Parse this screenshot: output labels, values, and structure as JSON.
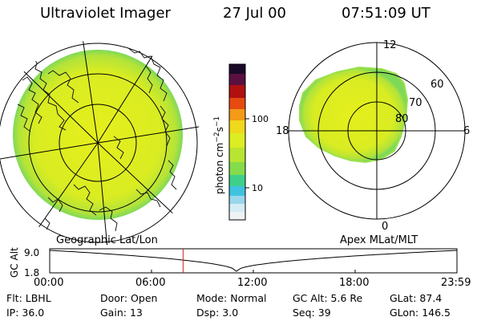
{
  "header": {
    "instrument": "Ultraviolet Imager",
    "date": "27 Jul 00",
    "time": "07:51:09 UT"
  },
  "colorbar": {
    "unit_label": "photon cm",
    "unit_exp1": "−2",
    "unit_s": "s",
    "unit_exp2": "−1",
    "ticks": [
      {
        "label": "100",
        "value": 100
      },
      {
        "label": "10",
        "value": 10
      }
    ]
  },
  "polar_plot": {
    "mlt_labels": {
      "top": "12",
      "bottom": "0",
      "left": "18",
      "right": "6"
    },
    "lat_labels": [
      "80",
      "70",
      "60"
    ]
  },
  "map_labels": {
    "geographic": "Geographic Lat/Lon",
    "apex": "Apex MLat/MLT"
  },
  "altitude_strip": {
    "ylabel": "GC Alt",
    "ymax_label": "9.0",
    "ymin_label": "1.8",
    "x_ticks": [
      "00:00",
      "06:00",
      "12:00",
      "18:00",
      "23:59"
    ],
    "current_time_hours": 7.86,
    "perigee_time_hours": 11.0
  },
  "info": {
    "row1": [
      {
        "key": "Flt:",
        "value": "LBHL"
      },
      {
        "key": "Door:",
        "value": "Open"
      },
      {
        "key": "Mode:",
        "value": "Normal"
      },
      {
        "key": "GC Alt:",
        "value": "5.6 Re"
      },
      {
        "key": "GLat:",
        "value": "87.4"
      }
    ],
    "row2": [
      {
        "key": "IP:",
        "value": "36.0"
      },
      {
        "key": "Gain:",
        "value": "13"
      },
      {
        "key": "Dsp:",
        "value": "3.0"
      },
      {
        "key": "Seq:",
        "value": "39"
      },
      {
        "key": "GLon:",
        "value": "146.5"
      }
    ]
  },
  "colors": {
    "aurora_fill": "#dcee1f",
    "aurora_edge": "#8ade44",
    "grid": "#000000",
    "current_time_line": "#d42020"
  }
}
